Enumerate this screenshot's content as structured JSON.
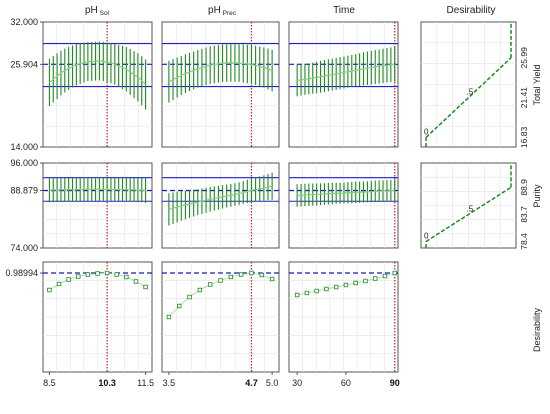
{
  "chart_data": {
    "type": "line",
    "title": "",
    "column_titles": [
      {
        "main": "pH",
        "sub": "Sol"
      },
      {
        "main": "pH",
        "sub": "Prec"
      },
      {
        "main": "Time",
        "sub": ""
      },
      {
        "main": "Desirability",
        "sub": ""
      }
    ],
    "row_labels": [
      "Total Yield",
      "Purity",
      "Desirability"
    ],
    "factors": [
      {
        "name": "pH Sol",
        "xlim": [
          8.3,
          11.7
        ],
        "ticks": [
          "8.5",
          "11.5"
        ],
        "current": 10.3,
        "current_label": "10.3"
      },
      {
        "name": "pH Prec",
        "xlim": [
          3.4,
          5.1
        ],
        "ticks": [
          "3.5",
          "5.0"
        ],
        "current": 4.7,
        "current_label": "4.7"
      },
      {
        "name": "Time",
        "xlim": [
          25,
          92
        ],
        "ticks": [
          "30",
          "60"
        ],
        "current": 90,
        "current_label": "90"
      }
    ],
    "responses": [
      {
        "name": "Total Yield",
        "ylim": [
          14.0,
          32.0
        ],
        "y_ticks": [
          "32.000",
          "25.904",
          "14.000"
        ],
        "current_value": 25.904,
        "reference_lines": [
          28.9,
          22.7
        ],
        "profiles": [
          {
            "x": [
              8.5,
              8.9,
              9.3,
              9.7,
              10.1,
              10.5,
              10.9,
              11.3,
              11.5
            ],
            "mean": [
              23.3,
              24.8,
              25.8,
              26.3,
              26.4,
              26.0,
              25.2,
              23.9,
              23.0
            ],
            "lower": [
              19.9,
              21.6,
              22.8,
              23.5,
              23.6,
              23.1,
              22.0,
              20.4,
              19.4
            ],
            "upper": [
              26.7,
              28.0,
              28.8,
              29.1,
              29.2,
              28.9,
              28.4,
              27.4,
              26.6
            ]
          },
          {
            "x": [
              3.5,
              3.7,
              3.9,
              4.1,
              4.3,
              4.5,
              4.7,
              4.9,
              5.0
            ],
            "mean": [
              23.4,
              24.4,
              25.2,
              25.8,
              26.1,
              26.1,
              25.9,
              25.4,
              25.0
            ],
            "lower": [
              20.4,
              21.6,
              22.5,
              23.1,
              23.4,
              23.4,
              23.1,
              22.5,
              22.0
            ],
            "upper": [
              26.4,
              27.2,
              27.9,
              28.5,
              28.8,
              28.8,
              28.7,
              28.3,
              28.0
            ]
          },
          {
            "x": [
              30,
              37,
              44,
              51,
              58,
              65,
              72,
              79,
              86,
              90
            ],
            "mean": [
              23.6,
              23.8,
              24.1,
              24.4,
              24.7,
              25.0,
              25.3,
              25.6,
              25.8,
              25.9
            ],
            "lower": [
              21.3,
              21.6,
              21.8,
              22.1,
              22.4,
              22.7,
              22.9,
              23.1,
              23.3,
              23.4
            ],
            "upper": [
              25.9,
              26.0,
              26.4,
              26.7,
              27.0,
              27.3,
              27.7,
              28.0,
              28.3,
              28.4
            ]
          }
        ],
        "desirability_function": {
          "x": [
            0,
            1
          ],
          "y": [
            16.83,
            25.99
          ],
          "ticks": [
            "25.99",
            "21.41",
            "16.83"
          ],
          "labels": [
            "0",
            ".5"
          ]
        }
      },
      {
        "name": "Purity",
        "ylim": [
          74.0,
          96.0
        ],
        "y_ticks": [
          "96.000",
          "88.879",
          "74.000"
        ],
        "current_value": 88.879,
        "reference_lines": [
          92.2,
          86.1
        ],
        "profiles": [
          {
            "x": [
              8.5,
              8.9,
              9.3,
              9.7,
              10.1,
              10.5,
              10.9,
              11.3,
              11.5
            ],
            "mean": [
              89.0,
              89.1,
              89.1,
              89.2,
              89.2,
              89.1,
              89.1,
              89.0,
              88.9
            ],
            "lower": [
              85.8,
              86.0,
              86.1,
              86.2,
              86.2,
              86.2,
              86.1,
              85.9,
              85.7
            ],
            "upper": [
              92.2,
              92.2,
              92.2,
              92.3,
              92.3,
              92.2,
              92.2,
              92.1,
              92.1
            ]
          },
          {
            "x": [
              3.5,
              3.7,
              3.9,
              4.1,
              4.3,
              4.5,
              4.7,
              4.9,
              5.0
            ],
            "mean": [
              84.0,
              85.0,
              85.8,
              86.6,
              87.3,
              88.0,
              88.9,
              89.6,
              90.0
            ],
            "lower": [
              79.8,
              81.2,
              82.4,
              83.4,
              84.3,
              85.1,
              85.8,
              86.3,
              86.5
            ],
            "upper": [
              88.2,
              88.8,
              89.2,
              89.8,
              90.3,
              90.9,
              92.0,
              92.9,
              93.5
            ]
          },
          {
            "x": [
              30,
              37,
              44,
              51,
              58,
              65,
              72,
              79,
              86,
              90
            ],
            "mean": [
              87.6,
              87.8,
              87.9,
              88.1,
              88.2,
              88.4,
              88.5,
              88.7,
              88.8,
              88.9
            ],
            "lower": [
              84.7,
              84.9,
              85.1,
              85.3,
              85.5,
              85.6,
              85.8,
              85.9,
              86.0,
              86.1
            ],
            "upper": [
              90.5,
              90.7,
              90.7,
              90.9,
              90.9,
              91.2,
              91.2,
              91.5,
              91.6,
              91.7
            ]
          }
        ],
        "desirability_function": {
          "x": [
            0,
            1
          ],
          "y": [
            78.4,
            88.9
          ],
          "ticks": [
            "88.9",
            "83.7",
            "78.4"
          ],
          "labels": [
            "0",
            ".5"
          ]
        }
      },
      {
        "name": "Desirability",
        "ylim": [
          0,
          1.1
        ],
        "y_ticks": [
          "0.98994"
        ],
        "current_value": 0.98994,
        "profiles": [
          {
            "x": [
              8.5,
              8.8,
              9.1,
              9.4,
              9.7,
              10.0,
              10.3,
              10.6,
              10.9,
              11.2,
              11.5
            ],
            "y": [
              0.82,
              0.88,
              0.925,
              0.955,
              0.975,
              0.985,
              0.99,
              0.975,
              0.95,
              0.905,
              0.85
            ]
          },
          {
            "x": [
              3.5,
              3.65,
              3.8,
              3.95,
              4.1,
              4.25,
              4.4,
              4.55,
              4.7,
              4.85,
              5.0
            ],
            "y": [
              0.55,
              0.66,
              0.75,
              0.82,
              0.875,
              0.915,
              0.95,
              0.975,
              0.99,
              0.97,
              0.93
            ]
          },
          {
            "x": [
              30,
              36,
              42,
              48,
              54,
              60,
              66,
              72,
              78,
              84,
              90
            ],
            "y": [
              0.77,
              0.79,
              0.81,
              0.83,
              0.85,
              0.87,
              0.89,
              0.91,
              0.935,
              0.96,
              0.99
            ]
          }
        ]
      }
    ],
    "colors": {
      "profile": "#1e8a1e",
      "reference": "#2020c8",
      "current_factor": "#c82020",
      "current_value": "#1a1ab4"
    }
  }
}
